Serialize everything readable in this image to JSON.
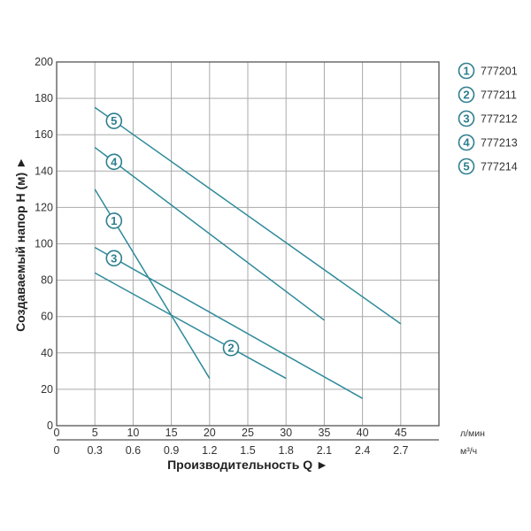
{
  "chart_data": {
    "type": "line",
    "xlabel": "Производительность Q ►",
    "ylabel": "Создаваемый напор H (м) ►",
    "x_unit": "л/мин",
    "x2_unit": "м³/ч",
    "xlim": [
      0,
      50
    ],
    "ylim": [
      0,
      200
    ],
    "x_ticks": [
      "0",
      "5",
      "10",
      "15",
      "20",
      "25",
      "30",
      "35",
      "40",
      "45"
    ],
    "x2_ticks": [
      "0",
      "0.3",
      "0.6",
      "0.9",
      "1.2",
      "1.5",
      "1.8",
      "2.1",
      "2.4",
      "2.7"
    ],
    "y_ticks": [
      "0",
      "20",
      "40",
      "60",
      "80",
      "100",
      "120",
      "140",
      "160",
      "180",
      "200"
    ],
    "grid": true,
    "legend_position": "right",
    "line_color": "#2e8a9a",
    "series": [
      {
        "name": "777201",
        "marker": "1",
        "x": [
          5,
          20
        ],
        "y": [
          130,
          26
        ],
        "label_q": 7.5
      },
      {
        "name": "777211",
        "marker": "2",
        "x": [
          5,
          30
        ],
        "y": [
          84,
          26
        ],
        "label_q": 22.8
      },
      {
        "name": "777212",
        "marker": "3",
        "x": [
          5,
          40
        ],
        "y": [
          98,
          15
        ],
        "label_q": 7.5
      },
      {
        "name": "777213",
        "marker": "4",
        "x": [
          5,
          35
        ],
        "y": [
          153,
          58
        ],
        "label_q": 7.5
      },
      {
        "name": "777214",
        "marker": "5",
        "x": [
          5,
          45
        ],
        "y": [
          175,
          56
        ],
        "label_q": 7.5
      }
    ]
  }
}
